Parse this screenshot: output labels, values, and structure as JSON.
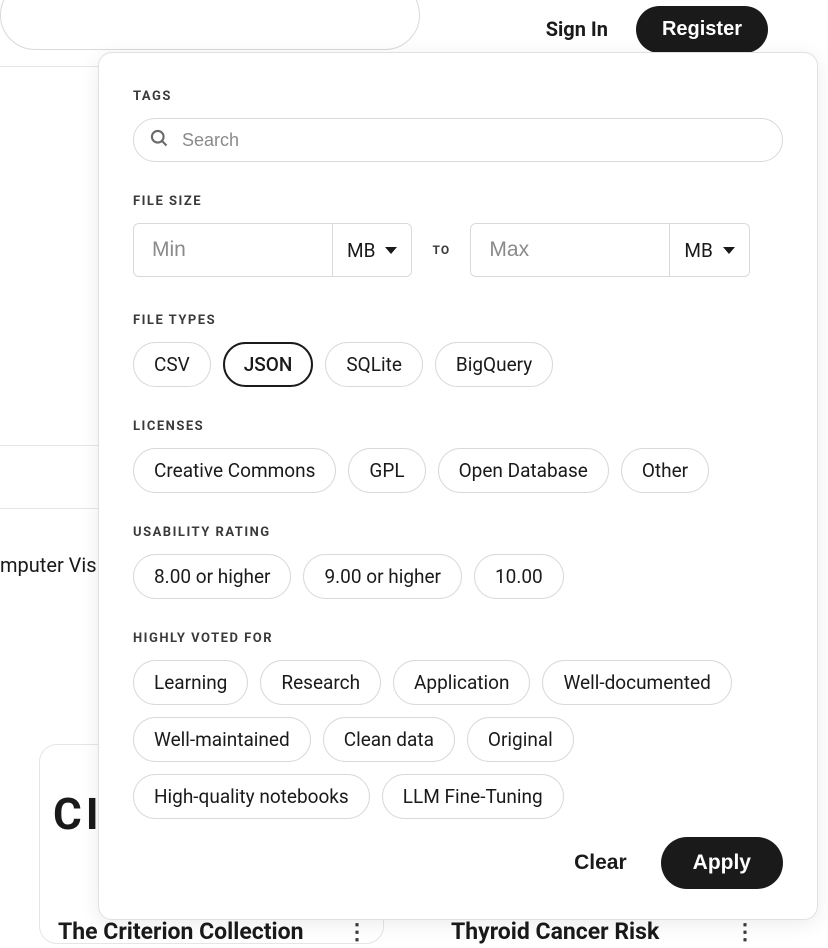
{
  "header": {
    "sign_in_label": "Sign In",
    "register_label": "Register"
  },
  "background": {
    "tag_text": "mputer Visio",
    "card_text": "CI",
    "title_1": "The Criterion Collection",
    "title_2": "Thyroid Cancer Risk"
  },
  "filters": {
    "tags": {
      "label": "TAGS",
      "search_placeholder": "Search"
    },
    "file_size": {
      "label": "FILE SIZE",
      "min_placeholder": "Min",
      "max_placeholder": "Max",
      "to_label": "TO",
      "unit_min": "MB",
      "unit_max": "MB"
    },
    "file_types": {
      "label": "FILE TYPES",
      "options": [
        {
          "label": "CSV",
          "selected": false
        },
        {
          "label": "JSON",
          "selected": true
        },
        {
          "label": "SQLite",
          "selected": false
        },
        {
          "label": "BigQuery",
          "selected": false
        }
      ]
    },
    "licenses": {
      "label": "LICENSES",
      "options": [
        {
          "label": "Creative Commons",
          "selected": false
        },
        {
          "label": "GPL",
          "selected": false
        },
        {
          "label": "Open Database",
          "selected": false
        },
        {
          "label": "Other",
          "selected": false
        }
      ]
    },
    "usability": {
      "label": "USABILITY RATING",
      "options": [
        {
          "label": "8.00 or higher",
          "selected": false
        },
        {
          "label": "9.00 or higher",
          "selected": false
        },
        {
          "label": "10.00",
          "selected": false
        }
      ]
    },
    "voted": {
      "label": "HIGHLY VOTED FOR",
      "options": [
        {
          "label": "Learning",
          "selected": false
        },
        {
          "label": "Research",
          "selected": false
        },
        {
          "label": "Application",
          "selected": false
        },
        {
          "label": "Well-documented",
          "selected": false
        },
        {
          "label": "Well-maintained",
          "selected": false
        },
        {
          "label": "Clean data",
          "selected": false
        },
        {
          "label": "Original",
          "selected": false
        },
        {
          "label": "High-quality notebooks",
          "selected": false
        },
        {
          "label": "LLM Fine-Tuning",
          "selected": false
        }
      ]
    },
    "footer": {
      "clear_label": "Clear",
      "apply_label": "Apply"
    }
  },
  "colors": {
    "primary": "#1a1a1a",
    "border": "#d9d9d9",
    "placeholder": "#8a8a8a",
    "background": "#ffffff"
  }
}
